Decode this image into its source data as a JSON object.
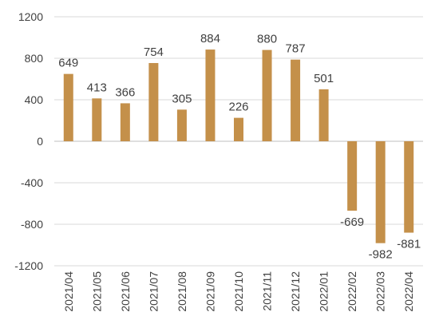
{
  "chart_data": {
    "type": "bar",
    "title": "",
    "xlabel": "",
    "ylabel": "",
    "categories": [
      "2021/04",
      "2021/05",
      "2021/06",
      "2021/07",
      "2021/08",
      "2021/09",
      "2021/10",
      "2021/11",
      "2021/12",
      "2022/01",
      "2022/02",
      "2022/03",
      "2022/04"
    ],
    "values": [
      649,
      413,
      366,
      754,
      305,
      884,
      226,
      880,
      787,
      501,
      -669,
      -982,
      -881
    ],
    "ylim": [
      -1200,
      1200
    ],
    "yticks": [
      -1200,
      -800,
      -400,
      0,
      400,
      800,
      1200
    ],
    "grid": true,
    "legend": "none",
    "bar_color": "#C4904A",
    "text_color": "#404040",
    "grid_color": "#D9D9D9"
  }
}
